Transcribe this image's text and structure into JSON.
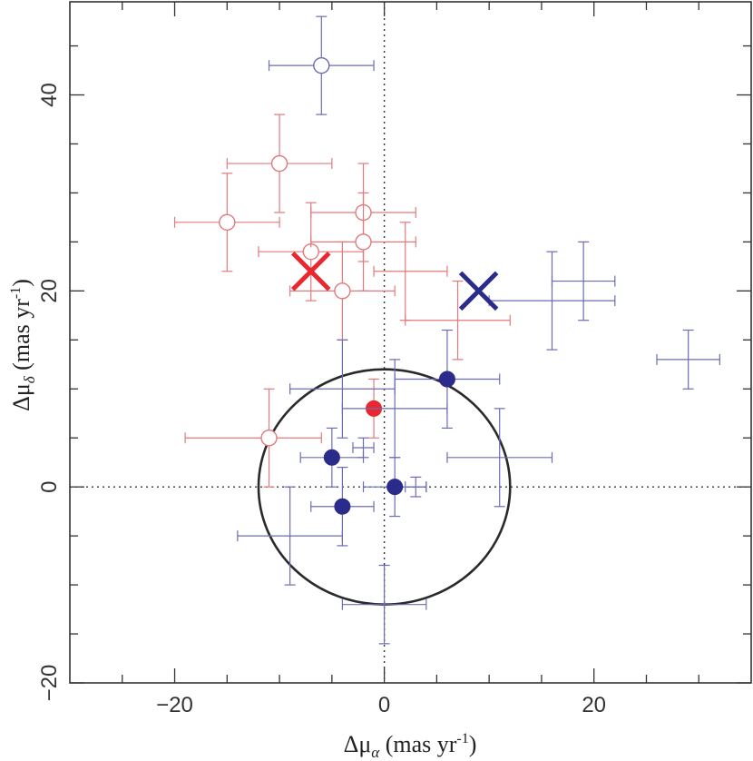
{
  "chart_data": {
    "type": "scatter",
    "xlabel": "Δμ",
    "xlabel_sub": "α",
    "xlabel_unit": " (mas yr",
    "xlabel_exp": "-1",
    "xlabel_close": ")",
    "ylabel": "Δμ",
    "ylabel_sub": "δ",
    "ylabel_unit": " (mas yr",
    "ylabel_exp": "-1",
    "ylabel_close": ")",
    "xlim": [
      -30,
      35
    ],
    "ylim": [
      -20,
      49.5
    ],
    "xticks_major": [
      -20,
      0,
      20
    ],
    "xticks_minor": [
      -25,
      -15,
      -10,
      -5,
      5,
      10,
      15,
      25,
      30
    ],
    "yticks_major": [
      -20,
      0,
      20,
      40
    ],
    "yticks_minor": [
      -15,
      -10,
      -5,
      5,
      10,
      15,
      25,
      30,
      35,
      45
    ],
    "x_tick_labels": [
      "−20",
      "0",
      "20"
    ],
    "y_tick_labels": [
      "−20",
      "0",
      "20",
      "40"
    ],
    "grid": false,
    "zero_lines": true,
    "circle": {
      "center": [
        0,
        0
      ],
      "radius": 12
    },
    "colors": {
      "red": "#e8282e",
      "blue": "#2b2b8c",
      "red_light": "#e2797c",
      "blue_light": "#6b6bb8",
      "black": "#222222"
    },
    "series": [
      {
        "color": "red",
        "marker": "open-circle",
        "points": [
          {
            "x": -15,
            "y": 27,
            "xerr": [
              5,
              5
            ],
            "yerr": [
              5,
              5
            ]
          },
          {
            "x": -10,
            "y": 33,
            "xerr": [
              5,
              5
            ],
            "yerr": [
              5,
              5
            ]
          },
          {
            "x": -7,
            "y": 24,
            "xerr": [
              5,
              5
            ],
            "yerr": [
              5,
              5
            ]
          },
          {
            "x": -4,
            "y": 20,
            "xerr": [
              5,
              5
            ],
            "yerr": [
              5,
              5
            ]
          },
          {
            "x": -2,
            "y": 28,
            "xerr": [
              5,
              5
            ],
            "yerr": [
              5,
              5
            ]
          },
          {
            "x": -2,
            "y": 25,
            "xerr": [
              5,
              5
            ],
            "yerr": [
              5,
              5
            ]
          },
          {
            "x": -11,
            "y": 5,
            "xerr": [
              8,
              5
            ],
            "yerr": [
              5,
              5
            ]
          }
        ]
      },
      {
        "color": "red",
        "marker": "none",
        "points": [
          {
            "x": 2,
            "y": 22,
            "xerr": [
              3,
              4
            ],
            "yerr": [
              5,
              5
            ]
          },
          {
            "x": 7,
            "y": 17,
            "xerr": [
              5,
              5
            ],
            "yerr": [
              4,
              4
            ]
          }
        ]
      },
      {
        "color": "red",
        "marker": "filled-circle",
        "points": [
          {
            "x": -1,
            "y": 8,
            "xerr": [
              0,
              0
            ],
            "yerr": [
              3,
              3
            ]
          }
        ]
      },
      {
        "color": "blue",
        "marker": "open-circle",
        "points": [
          {
            "x": -6,
            "y": 43,
            "xerr": [
              5,
              5
            ],
            "yerr": [
              5,
              5
            ]
          }
        ]
      },
      {
        "color": "blue",
        "marker": "filled-circle",
        "points": [
          {
            "x": -5,
            "y": 3,
            "xerr": [
              3,
              3
            ],
            "yerr": [
              3,
              3
            ]
          },
          {
            "x": -4,
            "y": -2,
            "xerr": [
              3,
              3
            ],
            "yerr": [
              4,
              4
            ]
          },
          {
            "x": 1,
            "y": 0,
            "xerr": [
              3,
              3
            ],
            "yerr": [
              3,
              3
            ]
          },
          {
            "x": 6,
            "y": 11,
            "xerr": [
              5,
              5
            ],
            "yerr": [
              5,
              5
            ]
          }
        ]
      },
      {
        "color": "blue",
        "marker": "none",
        "points": [
          {
            "x": 16,
            "y": 19,
            "xerr": [
              6,
              6
            ],
            "yerr": [
              5,
              5
            ]
          },
          {
            "x": 19,
            "y": 21,
            "xerr": [
              3,
              3
            ],
            "yerr": [
              4,
              4
            ]
          },
          {
            "x": 29,
            "y": 13,
            "xerr": [
              3,
              3
            ],
            "yerr": [
              3,
              3
            ]
          },
          {
            "x": 11,
            "y": 3,
            "xerr": [
              5,
              5
            ],
            "yerr": [
              5,
              5
            ]
          },
          {
            "x": -4,
            "y": 10,
            "xerr": [
              5,
              5
            ],
            "yerr": [
              5,
              5
            ]
          },
          {
            "x": 1,
            "y": 8,
            "xerr": [
              5,
              5
            ],
            "yerr": [
              5,
              5
            ]
          },
          {
            "x": -9,
            "y": -5,
            "xerr": [
              5,
              5
            ],
            "yerr": [
              5,
              5
            ]
          },
          {
            "x": 0,
            "y": -12,
            "xerr": [
              4,
              4
            ],
            "yerr": [
              4,
              4
            ]
          },
          {
            "x": 3,
            "y": 0,
            "xerr": [
              1,
              1
            ],
            "yerr": [
              1,
              1
            ]
          },
          {
            "x": -2,
            "y": 4,
            "xerr": [
              1,
              1
            ],
            "yerr": [
              1,
              1
            ]
          }
        ]
      }
    ],
    "crosses": [
      {
        "x": -7,
        "y": 22,
        "color": "red"
      },
      {
        "x": 9,
        "y": 20,
        "color": "blue"
      }
    ]
  }
}
